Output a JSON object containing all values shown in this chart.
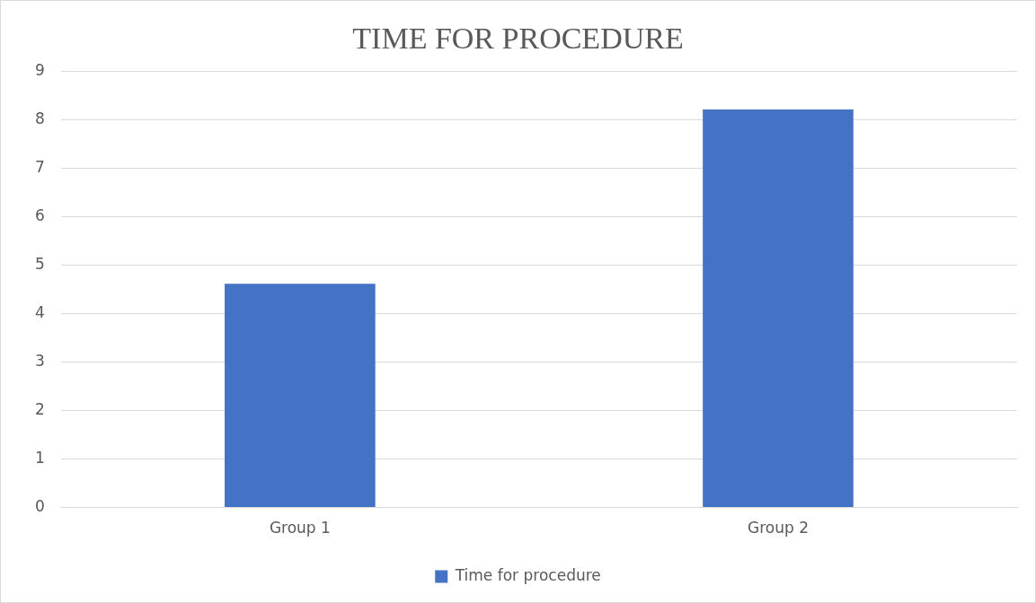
{
  "chart_data": {
    "type": "bar",
    "title": "TIME FOR PROCEDURE",
    "categories": [
      "Group 1",
      "Group 2"
    ],
    "series": [
      {
        "name": "Time for procedure",
        "color": "#4472c4",
        "values": [
          4.62,
          8.22
        ]
      }
    ],
    "ylim": [
      0,
      9
    ],
    "yticks": [
      0,
      1,
      2,
      3,
      4,
      5,
      6,
      7,
      8,
      9
    ],
    "grid": "y",
    "legend": "bottom"
  }
}
